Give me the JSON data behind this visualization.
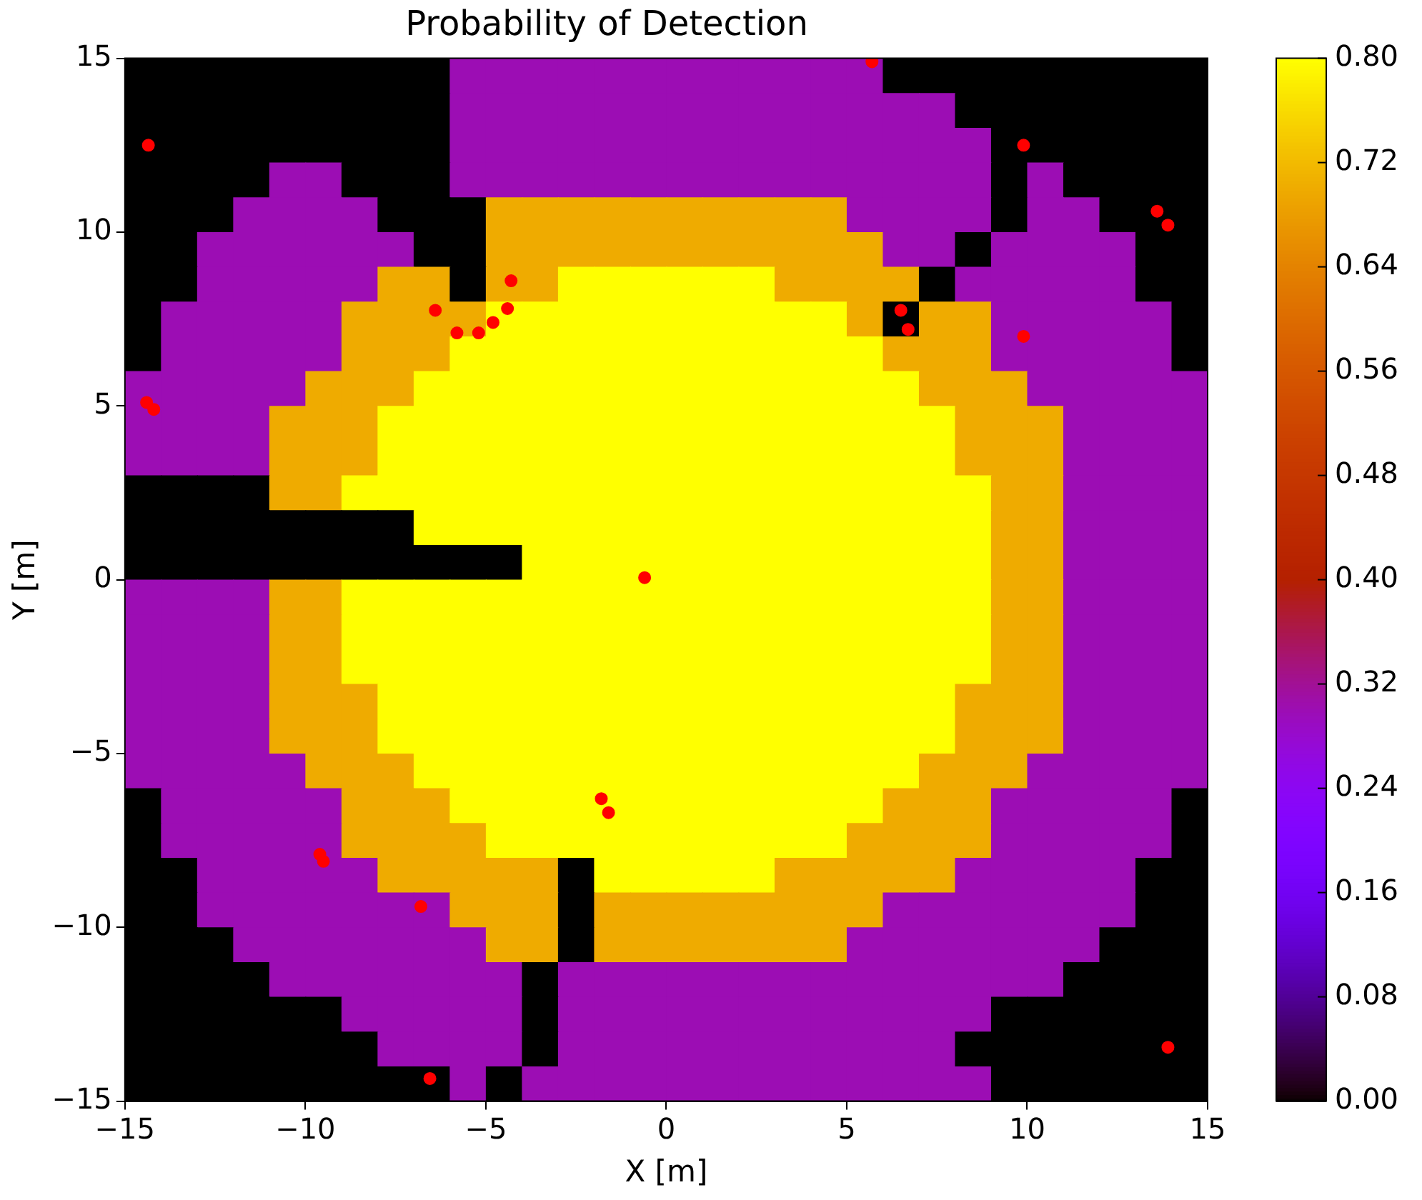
{
  "chart_data": {
    "type": "heatmap",
    "title": "Probability of Detection",
    "xlabel": "X [m]",
    "ylabel": "Y [m]",
    "xlim": [
      -15,
      15
    ],
    "ylim": [
      -15,
      15
    ],
    "xticks": [
      {
        "value": -15,
        "label": "−15"
      },
      {
        "value": -10,
        "label": "−10"
      },
      {
        "value": -5,
        "label": "−5"
      },
      0,
      5,
      10,
      15
    ],
    "yticks": [
      {
        "value": -15,
        "label": "−15"
      },
      {
        "value": -10,
        "label": "−10"
      },
      {
        "value": -5,
        "label": "−5"
      },
      0,
      5,
      10,
      15
    ],
    "clim": [
      0,
      0.8
    ],
    "cticks": [
      {
        "value": 0,
        "label": "0.00"
      },
      {
        "value": 0.08,
        "label": "0.08"
      },
      {
        "value": 0.16,
        "label": "0.16"
      },
      {
        "value": 0.24,
        "label": "0.24"
      },
      {
        "value": 0.32,
        "label": "0.32"
      },
      {
        "value": 0.4,
        "label": "0.40"
      },
      {
        "value": 0.48,
        "label": "0.48"
      },
      {
        "value": 0.56,
        "label": "0.56"
      },
      {
        "value": 0.64,
        "label": "0.64"
      },
      {
        "value": 0.72,
        "label": "0.72"
      },
      {
        "value": 0.8,
        "label": "0.80"
      }
    ],
    "cells": [
      [
        0,
        0,
        0,
        0,
        0,
        0,
        0,
        0,
        0,
        0.3,
        0.3,
        0.3,
        0.3,
        0.3,
        0.3,
        0.3,
        0.3,
        0.3,
        0.3,
        0.3,
        0.3,
        0,
        0,
        0,
        0,
        0,
        0,
        0,
        0,
        0
      ],
      [
        0,
        0,
        0,
        0,
        0,
        0,
        0,
        0,
        0,
        0.3,
        0.3,
        0.3,
        0.3,
        0.3,
        0.3,
        0.3,
        0.3,
        0.3,
        0.3,
        0.3,
        0.3,
        0.3,
        0.3,
        0,
        0,
        0,
        0,
        0,
        0,
        0
      ],
      [
        0,
        0,
        0,
        0,
        0,
        0,
        0,
        0,
        0,
        0.3,
        0.3,
        0.3,
        0.3,
        0.3,
        0.3,
        0.3,
        0.3,
        0.3,
        0.3,
        0.3,
        0.3,
        0.3,
        0.3,
        0.3,
        0,
        0,
        0,
        0,
        0,
        0
      ],
      [
        0,
        0,
        0,
        0,
        0.3,
        0.3,
        0,
        0,
        0,
        0.3,
        0.3,
        0.3,
        0.3,
        0.3,
        0.3,
        0.3,
        0.3,
        0.3,
        0.3,
        0.3,
        0.3,
        0.3,
        0.3,
        0.3,
        0,
        0.3,
        0,
        0,
        0,
        0
      ],
      [
        0,
        0,
        0,
        0.3,
        0.3,
        0.3,
        0.3,
        0,
        0,
        0,
        0.7,
        0.7,
        0.7,
        0.7,
        0.7,
        0.7,
        0.7,
        0.7,
        0.7,
        0.7,
        0.3,
        0.3,
        0.3,
        0.3,
        0,
        0.3,
        0.3,
        0,
        0,
        0
      ],
      [
        0,
        0,
        0.3,
        0.3,
        0.3,
        0.3,
        0.3,
        0.3,
        0,
        0,
        0.7,
        0.7,
        0.7,
        0.7,
        0.7,
        0.7,
        0.7,
        0.7,
        0.7,
        0.7,
        0.7,
        0.3,
        0.3,
        0,
        0.3,
        0.3,
        0.3,
        0.3,
        0,
        0
      ],
      [
        0,
        0,
        0.3,
        0.3,
        0.3,
        0.3,
        0.3,
        0.7,
        0.7,
        0,
        0.7,
        0.7,
        0.8,
        0.8,
        0.8,
        0.8,
        0.8,
        0.8,
        0.7,
        0.7,
        0.7,
        0.7,
        0,
        0.3,
        0.3,
        0.3,
        0.3,
        0.3,
        0,
        0
      ],
      [
        0,
        0.3,
        0.3,
        0.3,
        0.3,
        0.3,
        0.7,
        0.7,
        0.7,
        0.7,
        0.8,
        0.8,
        0.8,
        0.8,
        0.8,
        0.8,
        0.8,
        0.8,
        0.8,
        0.8,
        0.7,
        0,
        0.7,
        0.7,
        0.3,
        0.3,
        0.3,
        0.3,
        0.3,
        0
      ],
      [
        0,
        0.3,
        0.3,
        0.3,
        0.3,
        0.3,
        0.7,
        0.7,
        0.7,
        0.8,
        0.8,
        0.8,
        0.8,
        0.8,
        0.8,
        0.8,
        0.8,
        0.8,
        0.8,
        0.8,
        0.8,
        0.7,
        0.7,
        0.7,
        0.3,
        0.3,
        0.3,
        0.3,
        0.3,
        0
      ],
      [
        0.3,
        0.3,
        0.3,
        0.3,
        0.3,
        0.7,
        0.7,
        0.7,
        0.8,
        0.8,
        0.8,
        0.8,
        0.8,
        0.8,
        0.8,
        0.8,
        0.8,
        0.8,
        0.8,
        0.8,
        0.8,
        0.8,
        0.7,
        0.7,
        0.7,
        0.3,
        0.3,
        0.3,
        0.3,
        0.3
      ],
      [
        0.3,
        0.3,
        0.3,
        0.3,
        0.7,
        0.7,
        0.7,
        0.8,
        0.8,
        0.8,
        0.8,
        0.8,
        0.8,
        0.8,
        0.8,
        0.8,
        0.8,
        0.8,
        0.8,
        0.8,
        0.8,
        0.8,
        0.8,
        0.7,
        0.7,
        0.7,
        0.3,
        0.3,
        0.3,
        0.3
      ],
      [
        0.3,
        0.3,
        0.3,
        0.3,
        0.7,
        0.7,
        0.7,
        0.8,
        0.8,
        0.8,
        0.8,
        0.8,
        0.8,
        0.8,
        0.8,
        0.8,
        0.8,
        0.8,
        0.8,
        0.8,
        0.8,
        0.8,
        0.8,
        0.7,
        0.7,
        0.7,
        0.3,
        0.3,
        0.3,
        0.3
      ],
      [
        0,
        0,
        0,
        0,
        0.7,
        0.7,
        0.8,
        0.8,
        0.8,
        0.8,
        0.8,
        0.8,
        0.8,
        0.8,
        0.8,
        0.8,
        0.8,
        0.8,
        0.8,
        0.8,
        0.8,
        0.8,
        0.8,
        0.8,
        0.7,
        0.7,
        0.3,
        0.3,
        0.3,
        0.3
      ],
      [
        0,
        0,
        0,
        0,
        0,
        0,
        0,
        0,
        0.8,
        0.8,
        0.8,
        0.8,
        0.8,
        0.8,
        0.8,
        0.8,
        0.8,
        0.8,
        0.8,
        0.8,
        0.8,
        0.8,
        0.8,
        0.8,
        0.7,
        0.7,
        0.3,
        0.3,
        0.3,
        0.3
      ],
      [
        0,
        0,
        0,
        0,
        0,
        0,
        0,
        0,
        0,
        0,
        0,
        0.8,
        0.8,
        0.8,
        0.8,
        0.8,
        0.8,
        0.8,
        0.8,
        0.8,
        0.8,
        0.8,
        0.8,
        0.8,
        0.7,
        0.7,
        0.3,
        0.3,
        0.3,
        0.3
      ],
      [
        0.3,
        0.3,
        0.3,
        0.3,
        0.7,
        0.7,
        0.8,
        0.8,
        0.8,
        0.8,
        0.8,
        0.8,
        0.8,
        0.8,
        0.8,
        0.8,
        0.8,
        0.8,
        0.8,
        0.8,
        0.8,
        0.8,
        0.8,
        0.8,
        0.7,
        0.7,
        0.3,
        0.3,
        0.3,
        0.3
      ],
      [
        0.3,
        0.3,
        0.3,
        0.3,
        0.7,
        0.7,
        0.8,
        0.8,
        0.8,
        0.8,
        0.8,
        0.8,
        0.8,
        0.8,
        0.8,
        0.8,
        0.8,
        0.8,
        0.8,
        0.8,
        0.8,
        0.8,
        0.8,
        0.8,
        0.7,
        0.7,
        0.3,
        0.3,
        0.3,
        0.3
      ],
      [
        0.3,
        0.3,
        0.3,
        0.3,
        0.7,
        0.7,
        0.8,
        0.8,
        0.8,
        0.8,
        0.8,
        0.8,
        0.8,
        0.8,
        0.8,
        0.8,
        0.8,
        0.8,
        0.8,
        0.8,
        0.8,
        0.8,
        0.8,
        0.8,
        0.7,
        0.7,
        0.3,
        0.3,
        0.3,
        0.3
      ],
      [
        0.3,
        0.3,
        0.3,
        0.3,
        0.7,
        0.7,
        0.7,
        0.8,
        0.8,
        0.8,
        0.8,
        0.8,
        0.8,
        0.8,
        0.8,
        0.8,
        0.8,
        0.8,
        0.8,
        0.8,
        0.8,
        0.8,
        0.8,
        0.7,
        0.7,
        0.7,
        0.3,
        0.3,
        0.3,
        0.3
      ],
      [
        0.3,
        0.3,
        0.3,
        0.3,
        0.7,
        0.7,
        0.7,
        0.8,
        0.8,
        0.8,
        0.8,
        0.8,
        0.8,
        0.8,
        0.8,
        0.8,
        0.8,
        0.8,
        0.8,
        0.8,
        0.8,
        0.8,
        0.8,
        0.7,
        0.7,
        0.7,
        0.3,
        0.3,
        0.3,
        0.3
      ],
      [
        0.3,
        0.3,
        0.3,
        0.3,
        0.3,
        0.7,
        0.7,
        0.7,
        0.8,
        0.8,
        0.8,
        0.8,
        0.8,
        0.8,
        0.8,
        0.8,
        0.8,
        0.8,
        0.8,
        0.8,
        0.8,
        0.8,
        0.7,
        0.7,
        0.7,
        0.3,
        0.3,
        0.3,
        0.3,
        0.3
      ],
      [
        0,
        0.3,
        0.3,
        0.3,
        0.3,
        0.3,
        0.7,
        0.7,
        0.7,
        0.8,
        0.8,
        0.8,
        0.8,
        0.8,
        0.8,
        0.8,
        0.8,
        0.8,
        0.8,
        0.8,
        0.8,
        0.7,
        0.7,
        0.7,
        0.3,
        0.3,
        0.3,
        0.3,
        0.3,
        0
      ],
      [
        0,
        0.3,
        0.3,
        0.3,
        0.3,
        0.3,
        0.7,
        0.7,
        0.7,
        0.7,
        0.8,
        0.8,
        0.8,
        0.8,
        0.8,
        0.8,
        0.8,
        0.8,
        0.8,
        0.8,
        0.7,
        0.7,
        0.7,
        0.7,
        0.3,
        0.3,
        0.3,
        0.3,
        0.3,
        0
      ],
      [
        0,
        0,
        0.3,
        0.3,
        0.3,
        0.3,
        0.3,
        0.7,
        0.7,
        0.7,
        0.7,
        0.7,
        0,
        0.8,
        0.8,
        0.8,
        0.8,
        0.8,
        0.7,
        0.7,
        0.7,
        0.7,
        0.7,
        0.3,
        0.3,
        0.3,
        0.3,
        0.3,
        0,
        0
      ],
      [
        0,
        0,
        0.3,
        0.3,
        0.3,
        0.3,
        0.3,
        0.3,
        0.3,
        0.7,
        0.7,
        0.7,
        0,
        0.7,
        0.7,
        0.7,
        0.7,
        0.7,
        0.7,
        0.7,
        0.7,
        0.3,
        0.3,
        0.3,
        0.3,
        0.3,
        0.3,
        0.3,
        0,
        0
      ],
      [
        0,
        0,
        0,
        0.3,
        0.3,
        0.3,
        0.3,
        0.3,
        0.3,
        0.3,
        0.7,
        0.7,
        0,
        0.7,
        0.7,
        0.7,
        0.7,
        0.7,
        0.7,
        0.7,
        0.3,
        0.3,
        0.3,
        0.3,
        0.3,
        0.3,
        0.3,
        0,
        0,
        0
      ],
      [
        0,
        0,
        0,
        0,
        0.3,
        0.3,
        0.3,
        0.3,
        0.3,
        0.3,
        0.3,
        0,
        0.3,
        0.3,
        0.3,
        0.3,
        0.3,
        0.3,
        0.3,
        0.3,
        0.3,
        0.3,
        0.3,
        0.3,
        0.3,
        0.3,
        0,
        0,
        0,
        0
      ],
      [
        0,
        0,
        0,
        0,
        0,
        0,
        0.3,
        0.3,
        0.3,
        0.3,
        0.3,
        0,
        0.3,
        0.3,
        0.3,
        0.3,
        0.3,
        0.3,
        0.3,
        0.3,
        0.3,
        0.3,
        0.3,
        0.3,
        0,
        0,
        0,
        0,
        0,
        0
      ],
      [
        0,
        0,
        0,
        0,
        0,
        0,
        0,
        0.3,
        0.3,
        0.3,
        0.3,
        0,
        0.3,
        0.3,
        0.3,
        0.3,
        0.3,
        0.3,
        0.3,
        0.3,
        0.3,
        0.3,
        0.3,
        0,
        0,
        0,
        0,
        0,
        0,
        0
      ],
      [
        0,
        0,
        0,
        0,
        0,
        0,
        0,
        0,
        0,
        0.3,
        0,
        0.3,
        0.3,
        0.3,
        0.3,
        0.3,
        0.3,
        0.3,
        0.3,
        0.3,
        0.3,
        0.3,
        0.3,
        0.3,
        0,
        0,
        0,
        0,
        0,
        0
      ]
    ],
    "series": [
      {
        "type": "scatter",
        "color": "#ff0000",
        "x": [
          -14.35,
          5.7,
          9.9,
          13.6,
          13.9,
          -14.4,
          -14.2,
          -6.4,
          -5.8,
          -5.2,
          -4.8,
          -4.4,
          -4.3,
          6.5,
          6.7,
          9.9,
          -0.6,
          -1.8,
          -1.6,
          -9.6,
          -9.5,
          -6.8,
          -6.55,
          13.9
        ],
        "values": [
          12.5,
          14.9,
          12.5,
          10.6,
          10.2,
          5.1,
          4.9,
          7.75,
          7.1,
          7.1,
          7.4,
          7.8,
          8.6,
          7.75,
          7.2,
          7.0,
          0.06,
          -6.3,
          -6.7,
          -7.9,
          -8.1,
          -9.4,
          -14.35,
          -13.45
        ]
      }
    ],
    "marker": "circle"
  }
}
